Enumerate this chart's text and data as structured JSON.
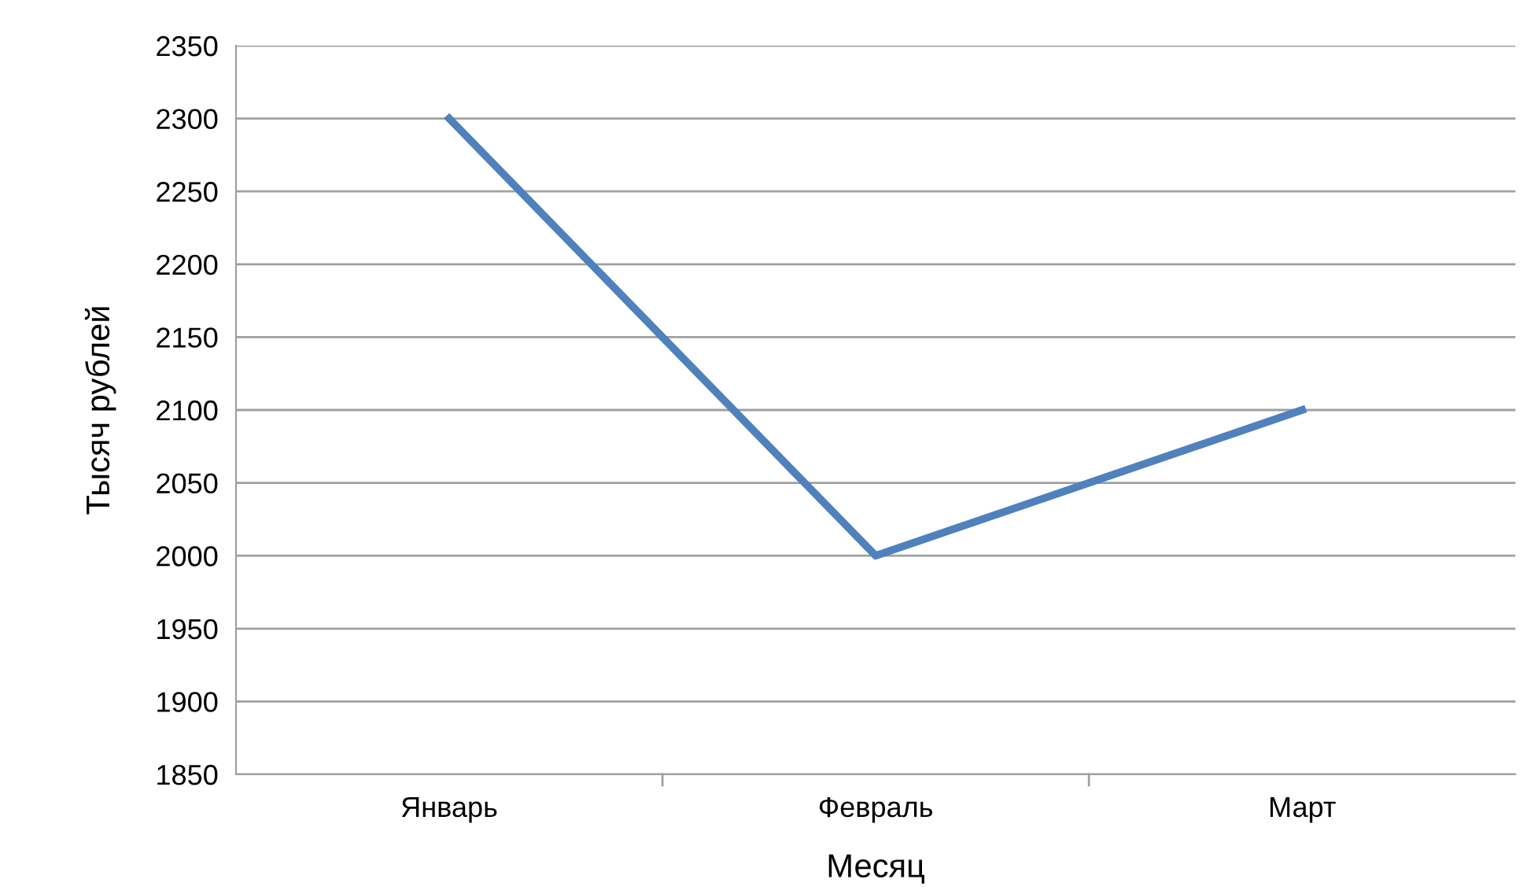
{
  "chart_data": {
    "type": "line",
    "xlabel": "Месяц",
    "ylabel": "Тысяч рублей",
    "categories": [
      "Январь",
      "Февраль",
      "Март"
    ],
    "series": [
      {
        "color": "#4f81bd",
        "values": [
          2300,
          2000,
          2100
        ]
      }
    ],
    "ylim": [
      1850,
      2350
    ],
    "yticks": [
      1850,
      1900,
      1950,
      2000,
      2050,
      2100,
      2150,
      2200,
      2250,
      2300,
      2350
    ],
    "grid": "y",
    "marker": "none",
    "line_style": "solid"
  }
}
